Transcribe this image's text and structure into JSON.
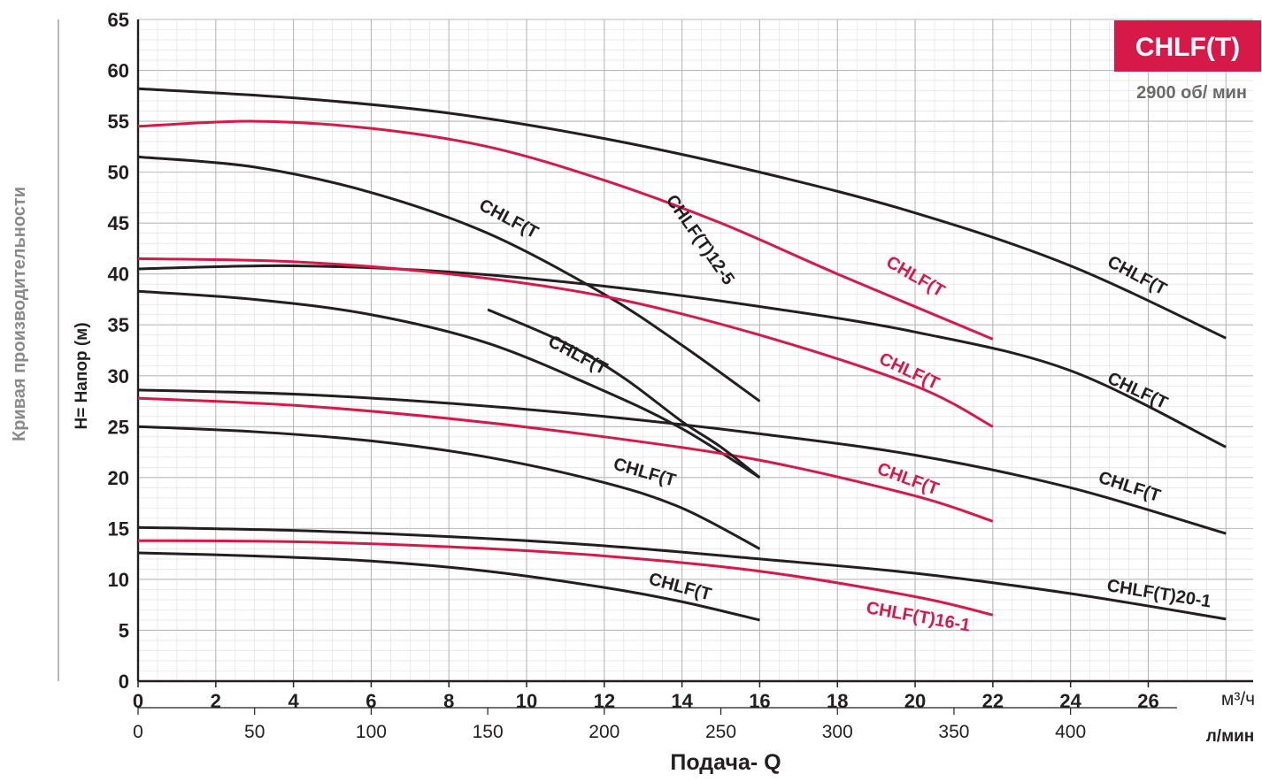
{
  "chart_data": {
    "type": "line",
    "model_badge": "CHLF(T)",
    "speed": "2900 об/ мин",
    "ylabel": "Н= Напор (м)",
    "side_label": "Кривая производительности",
    "xlabel": "Подача- Q",
    "x_unit_primary": "м³/ч",
    "x_unit_secondary": "л/мин",
    "xlim": [
      0,
      28
    ],
    "ylim": [
      0,
      65
    ],
    "grid": true,
    "y_ticks": [
      "0",
      "5",
      "10",
      "15",
      "20",
      "25",
      "30",
      "35",
      "40",
      "45",
      "50",
      "55",
      "60",
      "65"
    ],
    "x_ticks": [
      "0",
      "2",
      "4",
      "6",
      "8",
      "10",
      "12",
      "14",
      "16",
      "18",
      "20",
      "22",
      "24",
      "26"
    ],
    "x_ticks_secondary": [
      "0",
      "50",
      "100",
      "150",
      "200",
      "250",
      "300",
      "350",
      "400"
    ],
    "colors": {
      "dark": "#231f20",
      "red": "#d7194a",
      "grid": "#c9c9c9",
      "badge": "#d7194a"
    },
    "series": [
      {
        "label": "CHLF(T",
        "color": "dark",
        "x": [
          0,
          4,
          8,
          12,
          16,
          20,
          24,
          28
        ],
        "y": [
          58.2,
          57.3,
          55.8,
          53.3,
          50.0,
          46.0,
          40.8,
          33.7
        ]
      },
      {
        "label": "CHLF(T",
        "color": "red",
        "x": [
          0,
          3,
          6,
          9,
          12,
          15,
          18,
          22
        ],
        "y": [
          54.5,
          55.0,
          54.3,
          52.5,
          49.2,
          45.0,
          40.0,
          33.6
        ]
      },
      {
        "label": "CHLF(T",
        "color": "dark",
        "x": [
          0,
          3,
          6,
          9,
          12,
          14,
          16
        ],
        "y": [
          51.5,
          50.5,
          48.0,
          44.0,
          38.0,
          33.0,
          27.5
        ]
      },
      {
        "label": "CHLF(T",
        "color": "dark",
        "x": [
          0,
          4,
          8,
          12,
          16,
          20,
          24,
          28
        ],
        "y": [
          40.5,
          40.8,
          40.2,
          38.8,
          36.8,
          34.3,
          30.5,
          23.0
        ]
      },
      {
        "label": "CHLF(T",
        "color": "red",
        "x": [
          0,
          4,
          8,
          12,
          16,
          20,
          22
        ],
        "y": [
          41.5,
          41.2,
          40.0,
          37.8,
          34.0,
          29.0,
          25.0
        ]
      },
      {
        "label": "CHLF(T",
        "color": "dark",
        "x": [
          0,
          3,
          6,
          9,
          12,
          14,
          16
        ],
        "y": [
          38.3,
          37.5,
          36.0,
          33.2,
          28.5,
          24.8,
          20.0
        ]
      },
      {
        "label": "CHLF(T",
        "color": "dark",
        "x": [
          0,
          4,
          8,
          12,
          16,
          20,
          24,
          28
        ],
        "y": [
          28.6,
          28.2,
          27.3,
          26.0,
          24.3,
          22.2,
          19.0,
          14.5
        ]
      },
      {
        "label": "CHLF(T",
        "color": "red",
        "x": [
          0,
          4,
          8,
          12,
          16,
          20,
          22
        ],
        "y": [
          27.8,
          27.1,
          25.8,
          24.0,
          21.7,
          18.2,
          15.7
        ]
      },
      {
        "label": "CHLF(T",
        "color": "dark",
        "x": [
          0,
          3,
          6,
          9,
          12,
          14,
          16
        ],
        "y": [
          25.0,
          24.5,
          23.6,
          22.0,
          19.5,
          17.0,
          13.0
        ]
      },
      {
        "label": "CHLF(T)20-1",
        "color": "dark",
        "x": [
          0,
          4,
          8,
          12,
          16,
          20,
          24,
          28
        ],
        "y": [
          15.1,
          14.8,
          14.2,
          13.3,
          12.0,
          10.6,
          8.6,
          6.1
        ]
      },
      {
        "label": "CHLF(T)16-1",
        "color": "red",
        "x": [
          0,
          4,
          8,
          12,
          16,
          20,
          22
        ],
        "y": [
          13.8,
          13.7,
          13.2,
          12.3,
          10.8,
          8.3,
          6.5
        ]
      },
      {
        "label": "CHLF(T",
        "color": "dark",
        "x": [
          0,
          3,
          6,
          9,
          12,
          14,
          16
        ],
        "y": [
          12.6,
          12.3,
          11.8,
          10.8,
          9.2,
          7.8,
          6.0
        ]
      },
      {
        "label": "CHLF(T)12-5",
        "color": "dark",
        "x": [
          0,
          1,
          2,
          4,
          6,
          8,
          9,
          10,
          11,
          12
        ],
        "y": [
          0,
          0,
          0,
          0,
          0,
          0,
          0,
          0,
          0,
          0
        ],
        "hidden_placeholder": true
      }
    ],
    "crossing_curve": {
      "label": "CHLF(T)12-5",
      "color": "dark",
      "x": [
        0,
        3,
        6,
        9,
        12,
        14,
        16
      ],
      "y": [
        51.5,
        50.5,
        48.0,
        44.0,
        38.0,
        33.0,
        27.5
      ]
    }
  }
}
